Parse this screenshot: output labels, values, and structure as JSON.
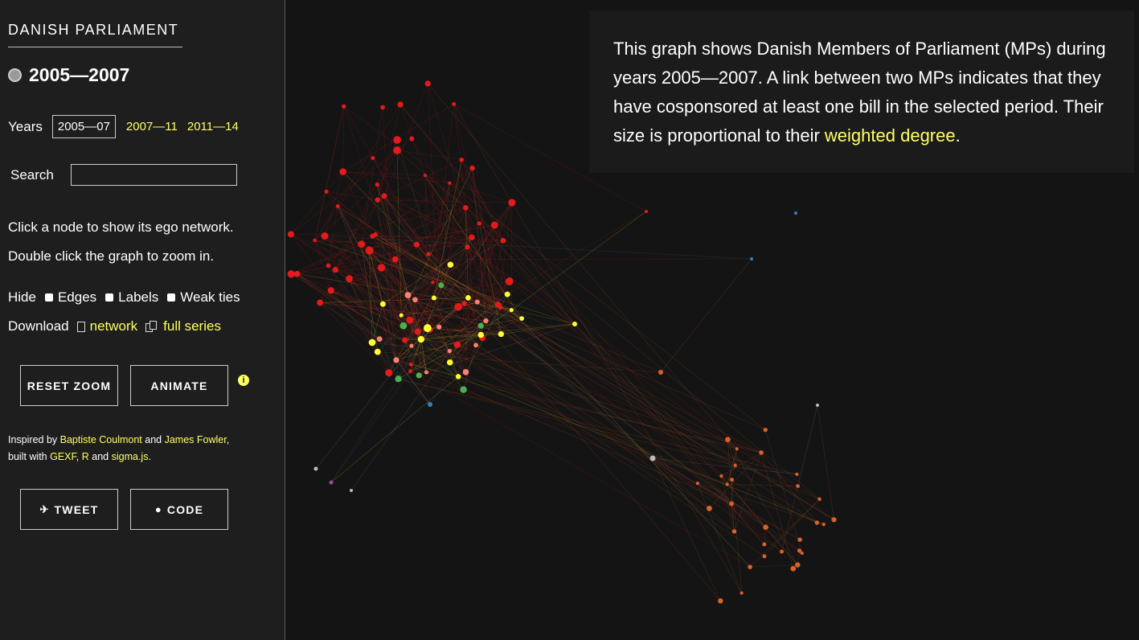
{
  "sidebar": {
    "brand": "DANISH PARLIAMENT",
    "period": "2005—2007",
    "years_label": "Years",
    "years_current": "2005—07",
    "years_links": [
      "2007—11",
      "2011—14"
    ],
    "search_label": "Search",
    "search_value": "",
    "hint_1": "Click a node to show its ego network.",
    "hint_2": "Double click the graph to zoom in.",
    "hide_label": "Hide",
    "hide_options": [
      "Edges",
      "Labels",
      "Weak ties"
    ],
    "download_label": "Download",
    "download_network": "network",
    "download_series": "full series",
    "reset_zoom": "RESET ZOOM",
    "animate": "ANIMATE",
    "credits": {
      "inspired_by": "Inspired by",
      "author_1": "Baptiste Coulmont",
      "and": "and",
      "author_2": "James Fowler",
      "comma": ",",
      "built_with": "built with",
      "tool_1": "GEXF",
      "sep_1": ",",
      "tool_2": "R",
      "and_2": "and",
      "tool_3": "sigma.js",
      "dot": "."
    },
    "tweet": "TWEET",
    "code": "CODE"
  },
  "description": {
    "text": "This graph shows Danish Members of Parliament (MPs) during years 2005—2007. A link between two MPs indicates that they have cosponsored at least one bill in the selected period. Their size is proportional to their",
    "link": "weighted degree",
    "end": "."
  },
  "colors": {
    "background": "#141414",
    "sidebar": "#1e1e1e",
    "accent": "#ffff66",
    "red": "#e41a1c",
    "yellow": "#ffff33",
    "salmon": "#fb8072",
    "green": "#4daf4a",
    "orange": "#d9622b",
    "blue": "#377eb8",
    "grey": "#bbbbbb",
    "purple": "#984ea3"
  }
}
